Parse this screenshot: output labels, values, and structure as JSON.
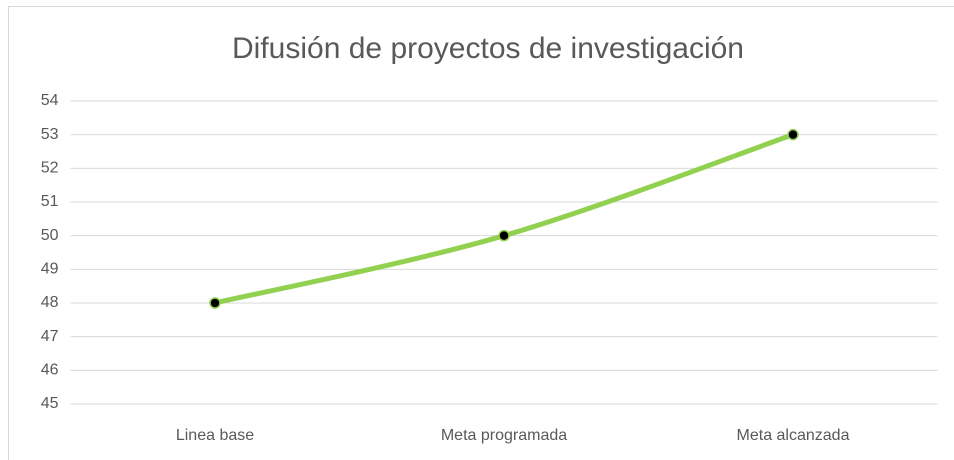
{
  "chart_data": {
    "type": "line",
    "title": "Difusión de proyectos de investigación",
    "categories": [
      "Linea base",
      "Meta programada",
      "Meta alcanzada"
    ],
    "series": [
      {
        "name": "Difusión de proyectos de investigación",
        "color": "#92d050",
        "marker_color": "#000000",
        "values": [
          48,
          50,
          53
        ]
      }
    ],
    "ylim": [
      45,
      54
    ],
    "yticks": [
      45,
      46,
      47,
      48,
      49,
      50,
      51,
      52,
      53,
      54
    ],
    "grid": true,
    "smooth": true
  }
}
